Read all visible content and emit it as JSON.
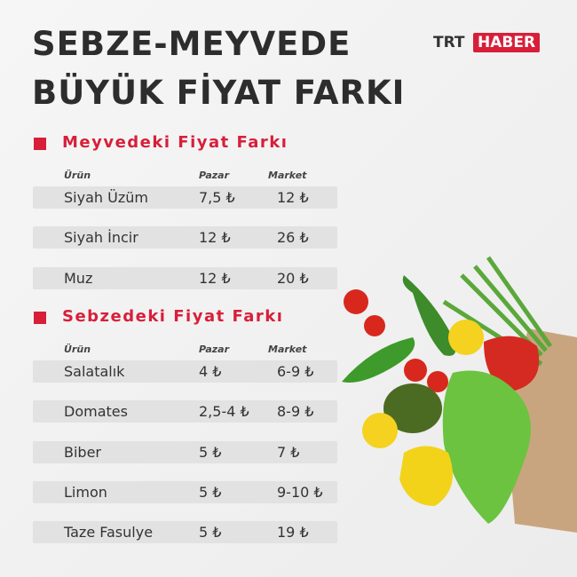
{
  "header": {
    "title_lines": [
      "SEBZE-MEYVEDE",
      "BÜYÜK FİYAT FARKI"
    ],
    "logo": {
      "left": "TRT",
      "right": "HABER"
    }
  },
  "sections": [
    {
      "title": "Meyvedeki Fiyat Farkı",
      "columns": [
        "Ürün",
        "Pazar",
        "Market"
      ],
      "rows": [
        [
          "Siyah Üzüm",
          "7,5 ₺",
          "12 ₺"
        ],
        [
          "Siyah İncir",
          "12 ₺",
          "26 ₺"
        ],
        [
          "Muz",
          "12 ₺",
          "20 ₺"
        ]
      ]
    },
    {
      "title": "Sebzedeki Fiyat Farkı",
      "columns": [
        "Ürün",
        "Pazar",
        "Market"
      ],
      "rows": [
        [
          "Salatalık",
          "4 ₺",
          "6-9 ₺"
        ],
        [
          "Domates",
          "2,5-4 ₺",
          "8-9 ₺"
        ],
        [
          "Biber",
          "5 ₺",
          "7 ₺"
        ],
        [
          "Limon",
          "5 ₺",
          "9-10 ₺"
        ],
        [
          "Taze Fasulye",
          "5 ₺",
          "19 ₺"
        ]
      ]
    }
  ]
}
